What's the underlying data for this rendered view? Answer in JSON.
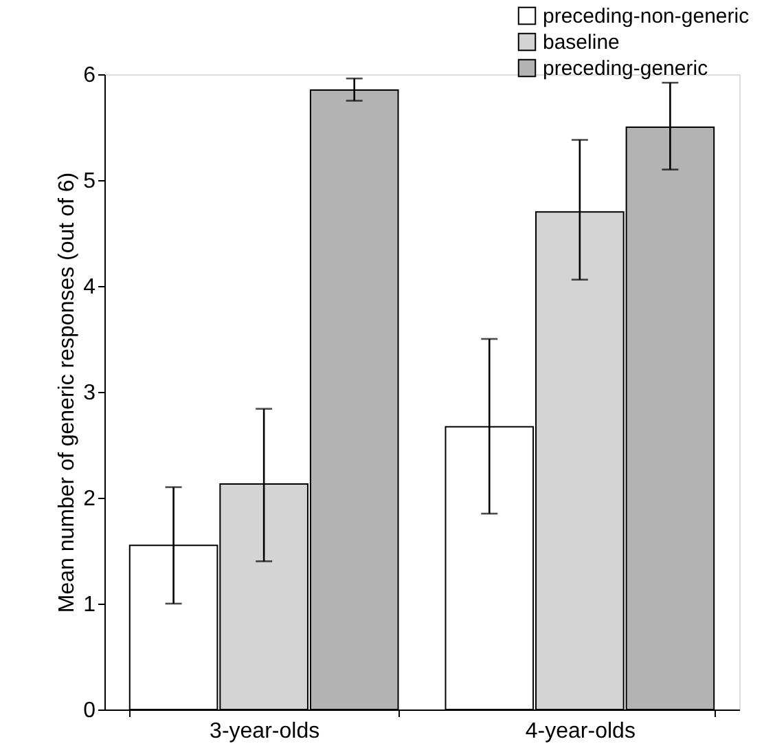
{
  "chart_data": {
    "type": "bar",
    "ylabel": "Mean number of generic responses (out of 6)",
    "categories": [
      "3-year-olds",
      "4-year-olds"
    ],
    "series": [
      {
        "name": "preceding-non-generic",
        "color": "#ffffff",
        "values": [
          1.55,
          2.67
        ],
        "errors": [
          [
            1.0,
            2.1
          ],
          [
            1.85,
            3.5
          ]
        ]
      },
      {
        "name": "baseline",
        "color": "#d4d4d4",
        "values": [
          2.13,
          4.7
        ],
        "errors": [
          [
            1.4,
            2.84
          ],
          [
            4.06,
            5.38
          ]
        ]
      },
      {
        "name": "preceding-generic",
        "color": "#b3b3b3",
        "values": [
          5.85,
          5.5
        ],
        "errors": [
          [
            5.75,
            5.96
          ],
          [
            5.1,
            5.92
          ]
        ]
      }
    ],
    "ylim": [
      0,
      6
    ],
    "yticks": [
      0,
      1,
      2,
      3,
      4,
      5,
      6
    ],
    "grid": false,
    "legend": "top right"
  }
}
